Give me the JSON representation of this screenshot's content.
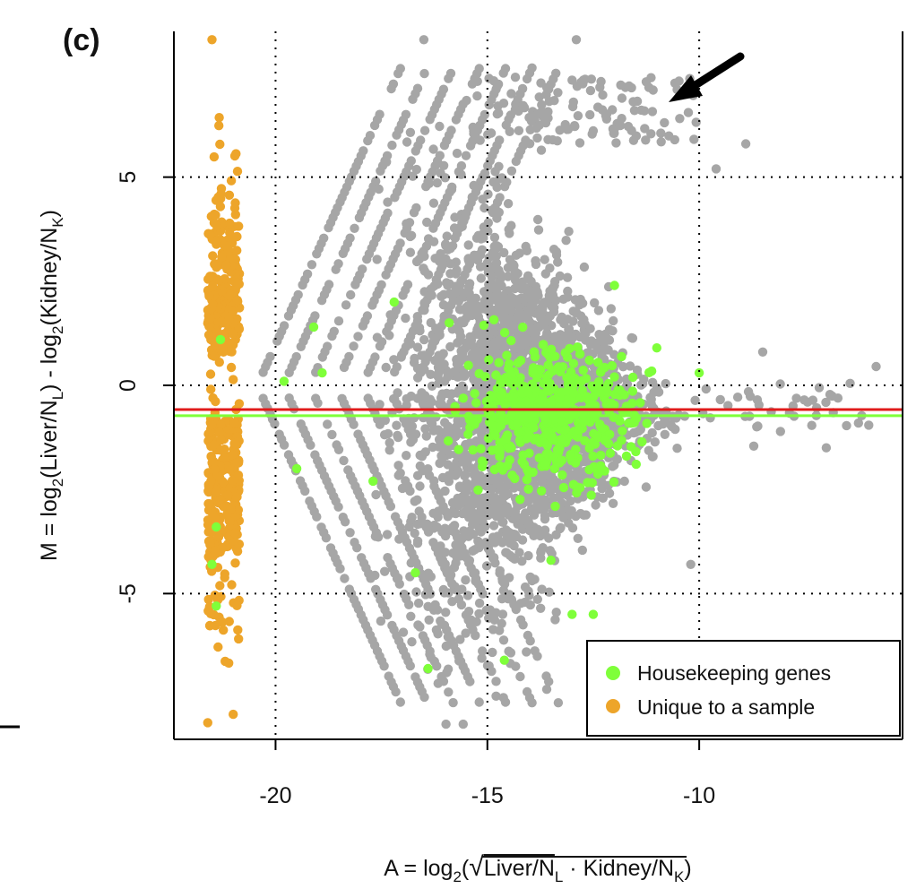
{
  "chart_data": {
    "type": "scatter",
    "panel_label": "(c)",
    "x_axis": {
      "label_prefix": "A = log",
      "label_sub": "2",
      "label_open": "(",
      "label_sqrt": "√",
      "label_body_1": "Liver/N",
      "label_sub_1": "L",
      "label_dot": " · ",
      "label_body_2": "Kidney/N",
      "label_sub_2": "K",
      "label_close": ")",
      "ticks": [
        -20,
        -15,
        -10
      ],
      "tick_labels": [
        "-20",
        "-15",
        "-10"
      ],
      "range": [
        -22.4,
        -5.2
      ]
    },
    "y_axis": {
      "label_prefix": "M = log",
      "label_sub_a": "2",
      "label_body_a": "(Liver/N",
      "label_sub_b": "L",
      "label_mid": ") - log",
      "label_sub_c": "2",
      "label_body_b": "(Kidney/N",
      "label_sub_d": "K",
      "label_close": ")",
      "ticks": [
        -5,
        0,
        5
      ],
      "tick_labels": [
        "-5",
        "0",
        "5"
      ],
      "range": [
        -8.5,
        8.5
      ]
    },
    "grid": "dotted at x = -20, -15, -10 and y = -5, 0, 5",
    "reference_lines": [
      {
        "role": "red-horizontal",
        "y": -0.58,
        "color": "#e01b1b"
      },
      {
        "role": "green-horizontal",
        "y": -0.73,
        "color": "#7fff3a"
      }
    ],
    "series": [
      {
        "role": "all-genes",
        "color": "#a6a6a6"
      },
      {
        "name": "Housekeeping genes",
        "color": "#7fff3a"
      },
      {
        "name": "Unique to a sample",
        "color": "#eda52a"
      }
    ],
    "annotation": {
      "type": "arrow",
      "pointing_at": [
        -10.8,
        6.9
      ],
      "color": "#000000"
    },
    "legend_position": "bottom-right"
  }
}
